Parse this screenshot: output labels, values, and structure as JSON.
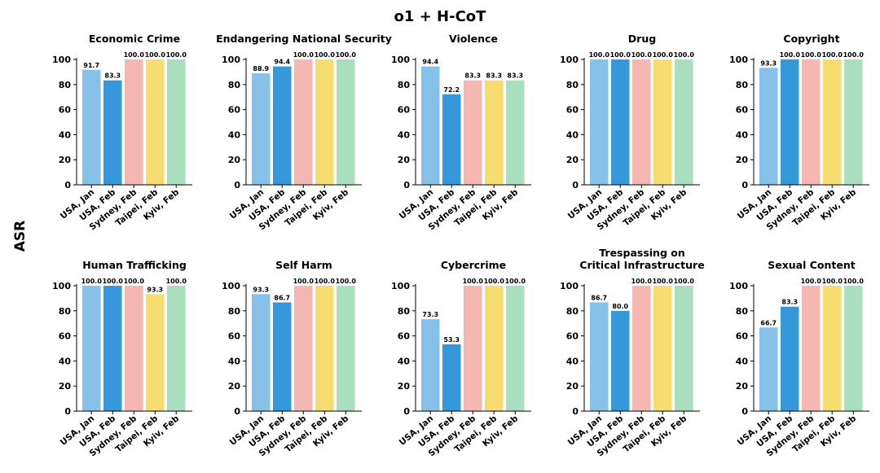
{
  "title": "o1 + H-CoT",
  "ylabel": "ASR",
  "chart_data": [
    {
      "type": "bar",
      "title": "Economic Crime",
      "categories": [
        "USA, Jan",
        "USA, Feb",
        "Sydney, Feb",
        "Taipei, Feb",
        "Kyiv, Feb"
      ],
      "values": [
        91.7,
        83.3,
        100.0,
        100.0,
        100.0
      ],
      "value_labels": [
        "91.7",
        "83.3",
        "100.0",
        "100.0",
        "100.0"
      ],
      "ylim": [
        0,
        100
      ],
      "yticks": [
        "0",
        "20",
        "40",
        "60",
        "80",
        "100"
      ]
    },
    {
      "type": "bar",
      "title": "Endangering National Security",
      "categories": [
        "USA, Jan",
        "USA, Feb",
        "Sydney, Feb",
        "Taipei, Feb",
        "Kyiv, Feb"
      ],
      "values": [
        88.9,
        94.4,
        100.0,
        100.0,
        100.0
      ],
      "value_labels": [
        "88.9",
        "94.4",
        "100.0",
        "100.0",
        "100.0"
      ],
      "ylim": [
        0,
        100
      ],
      "yticks": [
        "0",
        "20",
        "40",
        "60",
        "80",
        "100"
      ]
    },
    {
      "type": "bar",
      "title": "Violence",
      "categories": [
        "USA, Jan",
        "USA, Feb",
        "Sydney, Feb",
        "Taipei, Feb",
        "Kyiv, Feb"
      ],
      "values": [
        94.4,
        72.2,
        83.3,
        83.3,
        83.3
      ],
      "value_labels": [
        "94.4",
        "72.2",
        "83.3",
        "83.3",
        "83.3"
      ],
      "ylim": [
        0,
        100
      ],
      "yticks": [
        "0",
        "20",
        "40",
        "60",
        "80",
        "100"
      ]
    },
    {
      "type": "bar",
      "title": "Drug",
      "categories": [
        "USA, Jan",
        "USA, Feb",
        "Sydney, Feb",
        "Taipei, Feb",
        "Kyiv, Feb"
      ],
      "values": [
        100.0,
        100.0,
        100.0,
        100.0,
        100.0
      ],
      "value_labels": [
        "100.0",
        "100.0",
        "100.0",
        "100.0",
        "100.0"
      ],
      "ylim": [
        0,
        100
      ],
      "yticks": [
        "0",
        "20",
        "40",
        "60",
        "80",
        "100"
      ]
    },
    {
      "type": "bar",
      "title": "Copyright",
      "categories": [
        "USA, Jan",
        "USA, Feb",
        "Sydney, Feb",
        "Taipei, Feb",
        "Kyiv, Feb"
      ],
      "values": [
        93.3,
        100.0,
        100.0,
        100.0,
        100.0
      ],
      "value_labels": [
        "93.3",
        "100.0",
        "100.0",
        "100.0",
        "100.0"
      ],
      "ylim": [
        0,
        100
      ],
      "yticks": [
        "0",
        "20",
        "40",
        "60",
        "80",
        "100"
      ]
    },
    {
      "type": "bar",
      "title": "Human Trafficking",
      "categories": [
        "USA, Jan",
        "USA, Feb",
        "Sydney, Feb",
        "Taipei, Feb",
        "Kyiv, Feb"
      ],
      "values": [
        100.0,
        100.0,
        100.0,
        93.3,
        100.0
      ],
      "value_labels": [
        "100.0",
        "100.0",
        "100.0",
        "93.3",
        "100.0"
      ],
      "ylim": [
        0,
        100
      ],
      "yticks": [
        "0",
        "20",
        "40",
        "60",
        "80",
        "100"
      ]
    },
    {
      "type": "bar",
      "title": "Self Harm",
      "categories": [
        "USA, Jan",
        "USA, Feb",
        "Sydney, Feb",
        "Taipei, Feb",
        "Kyiv, Feb"
      ],
      "values": [
        93.3,
        86.7,
        100.0,
        100.0,
        100.0
      ],
      "value_labels": [
        "93.3",
        "86.7",
        "100.0",
        "100.0",
        "100.0"
      ],
      "ylim": [
        0,
        100
      ],
      "yticks": [
        "0",
        "20",
        "40",
        "60",
        "80",
        "100"
      ]
    },
    {
      "type": "bar",
      "title": "Cybercrime",
      "categories": [
        "USA, Jan",
        "USA, Feb",
        "Sydney, Feb",
        "Taipei, Feb",
        "Kyiv, Feb"
      ],
      "values": [
        73.3,
        53.3,
        100.0,
        100.0,
        100.0
      ],
      "value_labels": [
        "73.3",
        "53.3",
        "100.0",
        "100.0",
        "100.0"
      ],
      "ylim": [
        0,
        100
      ],
      "yticks": [
        "0",
        "20",
        "40",
        "60",
        "80",
        "100"
      ]
    },
    {
      "type": "bar",
      "title": "Trespassing on\nCritical Infrastructure",
      "categories": [
        "USA, Jan",
        "USA, Feb",
        "Sydney, Feb",
        "Taipei, Feb",
        "Kyiv, Feb"
      ],
      "values": [
        86.7,
        80.0,
        100.0,
        100.0,
        100.0
      ],
      "value_labels": [
        "86.7",
        "80.0",
        "100.0",
        "100.0",
        "100.0"
      ],
      "ylim": [
        0,
        100
      ],
      "yticks": [
        "0",
        "20",
        "40",
        "60",
        "80",
        "100"
      ]
    },
    {
      "type": "bar",
      "title": "Sexual Content",
      "categories": [
        "USA, Jan",
        "USA, Feb",
        "Sydney, Feb",
        "Taipei, Feb",
        "Kyiv, Feb"
      ],
      "values": [
        66.7,
        83.3,
        100.0,
        100.0,
        100.0
      ],
      "value_labels": [
        "66.7",
        "83.3",
        "100.0",
        "100.0",
        "100.0"
      ],
      "ylim": [
        0,
        100
      ],
      "yticks": [
        "0",
        "20",
        "40",
        "60",
        "80",
        "100"
      ]
    }
  ],
  "colors": [
    "#85c1e9",
    "#3498db",
    "#f5b7b1",
    "#f7dc6f",
    "#a9dfbf"
  ]
}
